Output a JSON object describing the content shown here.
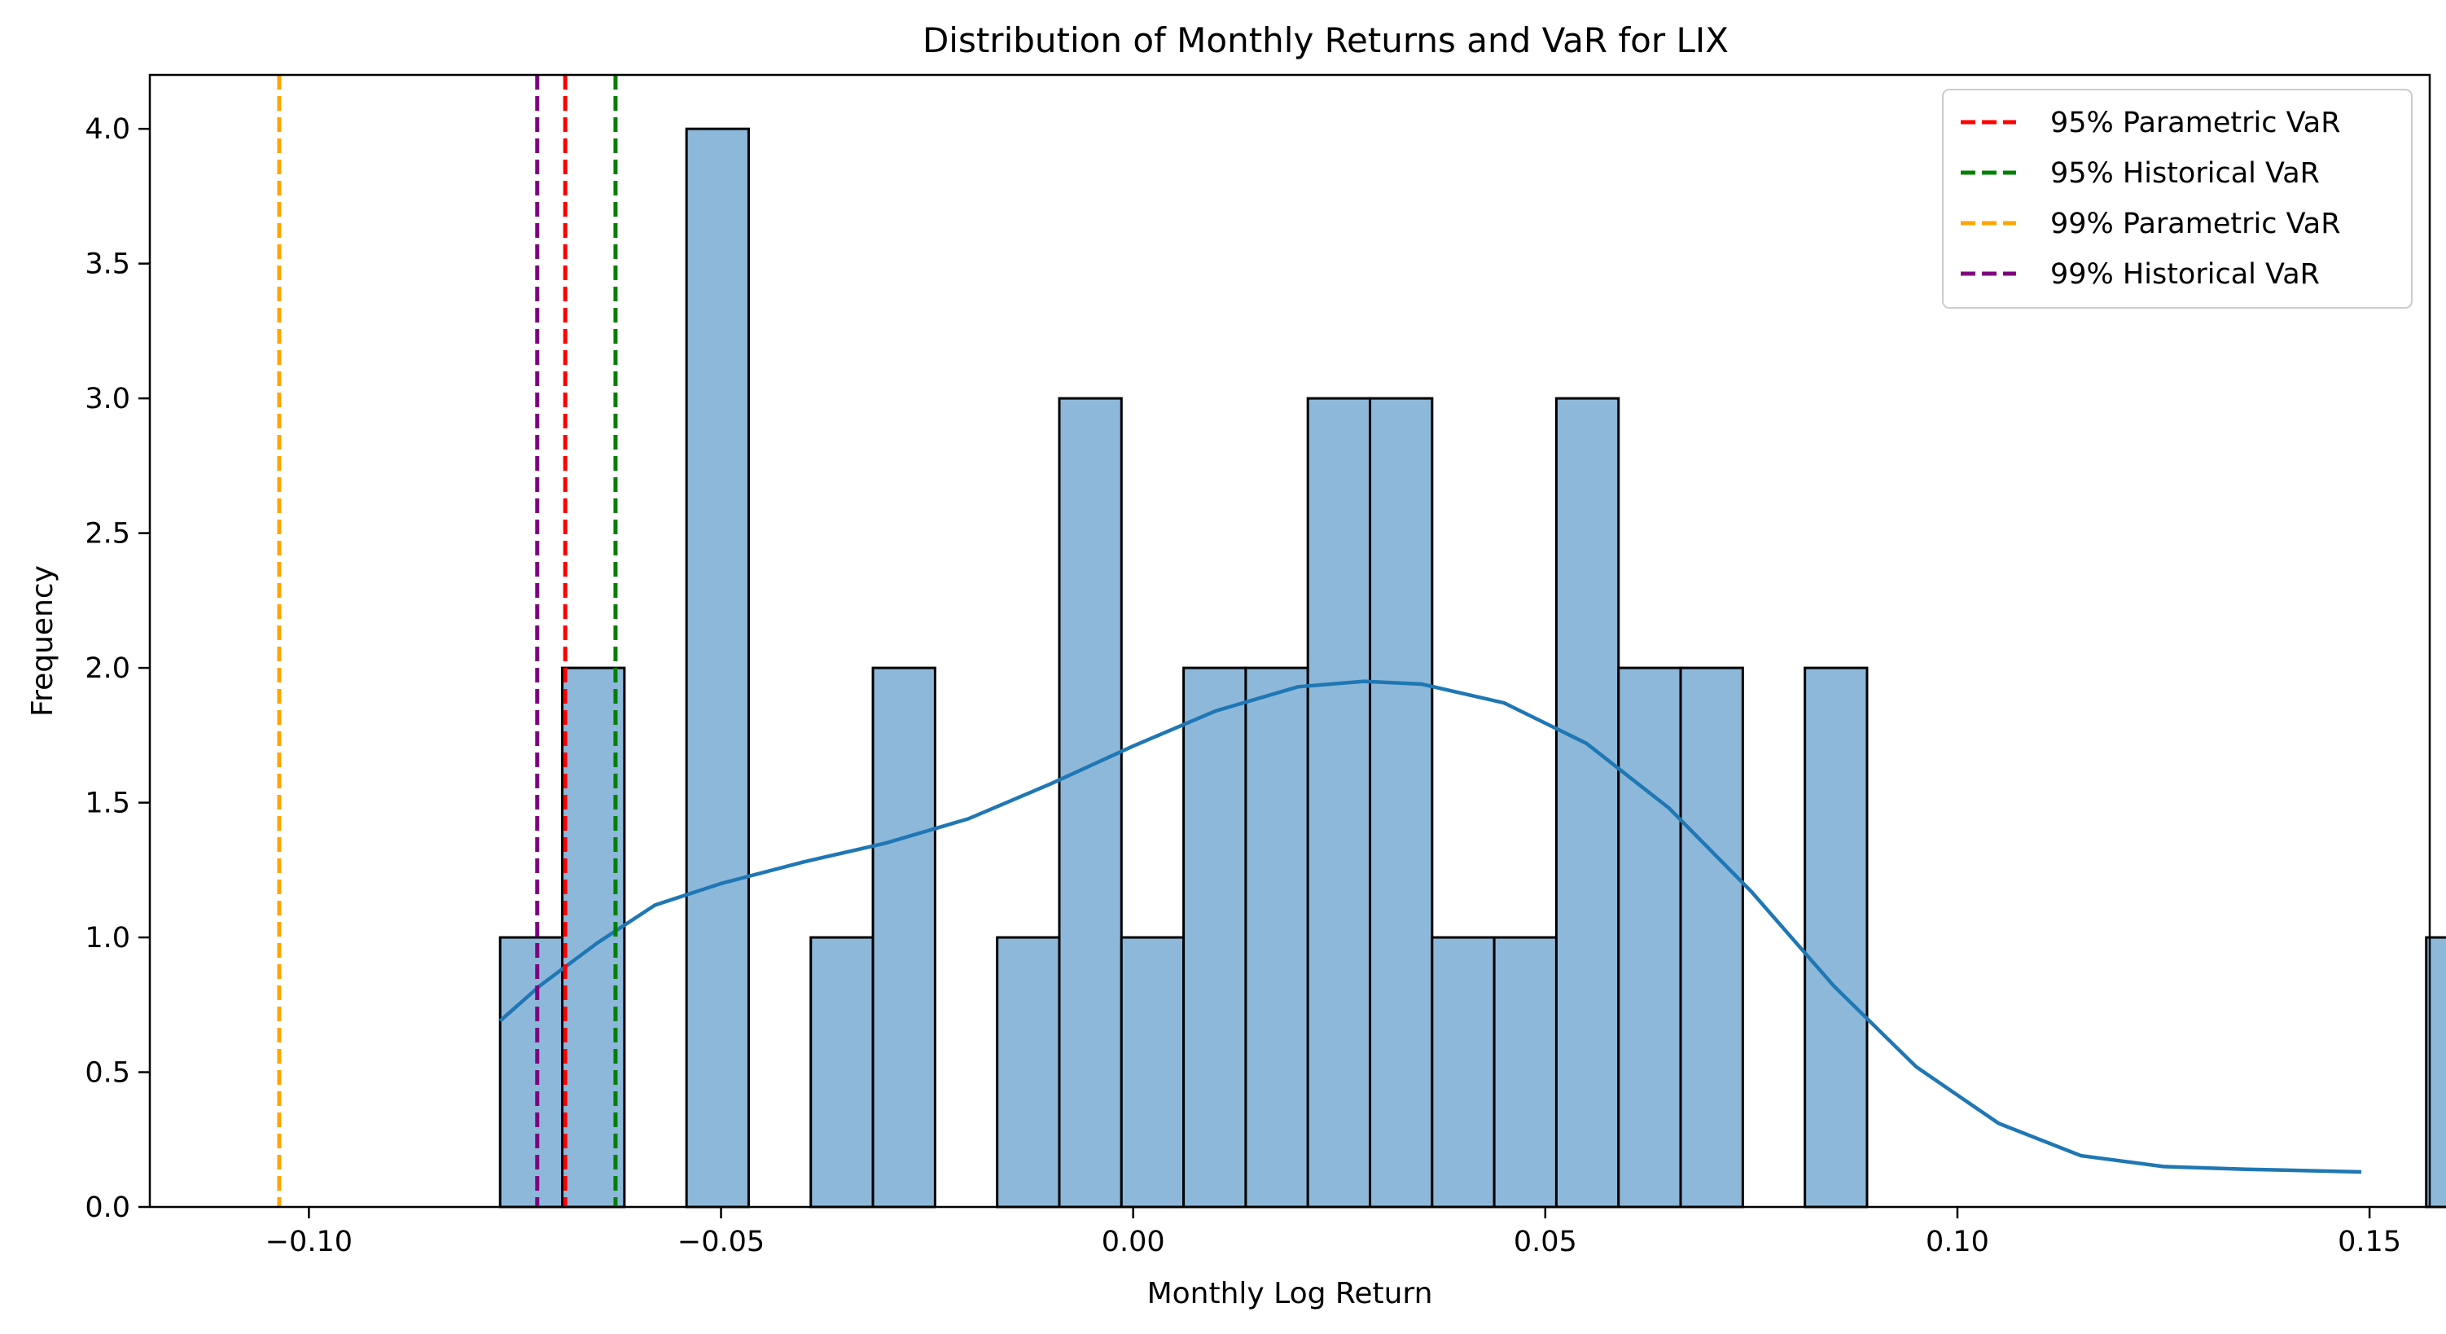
{
  "chart_data": {
    "type": "bar",
    "title": "Distribution of Monthly Returns and VaR for LIX",
    "xlabel": "Monthly Log Return",
    "ylabel": "Frequency",
    "xlim": [
      -0.1193,
      0.1573
    ],
    "ylim": [
      0,
      4.2
    ],
    "grid": false,
    "legend_position": "top-right",
    "xticks": [
      {
        "value": -0.1,
        "label": "−0.10"
      },
      {
        "value": -0.05,
        "label": "−0.05"
      },
      {
        "value": 0.0,
        "label": "0.00"
      },
      {
        "value": 0.05,
        "label": "0.05"
      },
      {
        "value": 0.1,
        "label": "0.10"
      },
      {
        "value": 0.15,
        "label": "0.15"
      }
    ],
    "yticks": [
      {
        "value": 0.0,
        "label": "0.0"
      },
      {
        "value": 0.5,
        "label": "0.5"
      },
      {
        "value": 1.0,
        "label": "1.0"
      },
      {
        "value": 1.5,
        "label": "1.5"
      },
      {
        "value": 2.0,
        "label": "2.0"
      },
      {
        "value": 2.5,
        "label": "2.5"
      },
      {
        "value": 3.0,
        "label": "3.0"
      },
      {
        "value": 3.5,
        "label": "3.5"
      },
      {
        "value": 4.0,
        "label": "4.0"
      }
    ],
    "histogram": {
      "bin_start": -0.0768,
      "bin_width": 0.007538,
      "counts": [
        1,
        2,
        0,
        4,
        0,
        1,
        2,
        0,
        1,
        3,
        1,
        2,
        2,
        3,
        3,
        1,
        1,
        3,
        2,
        2,
        0,
        2,
        0,
        0,
        0,
        0,
        0,
        0,
        0,
        0,
        0,
        1
      ],
      "fill_color": "#8db8da",
      "edge_color": "#000000"
    },
    "kde": {
      "color": "#1f77b4",
      "x": [
        -0.0768,
        -0.072,
        -0.065,
        -0.058,
        -0.05,
        -0.04,
        -0.03,
        -0.02,
        -0.01,
        0.0,
        0.01,
        0.02,
        0.028,
        0.035,
        0.045,
        0.055,
        0.065,
        0.075,
        0.085,
        0.095,
        0.105,
        0.115,
        0.125,
        0.135,
        0.149
      ],
      "y": [
        0.69,
        0.82,
        0.98,
        1.12,
        1.2,
        1.28,
        1.35,
        1.44,
        1.57,
        1.71,
        1.84,
        1.93,
        1.95,
        1.94,
        1.87,
        1.72,
        1.48,
        1.17,
        0.82,
        0.52,
        0.31,
        0.19,
        0.15,
        0.14,
        0.13
      ]
    },
    "var_lines": [
      {
        "name": "95% Parametric VaR",
        "value": -0.0689,
        "color": "#ff0000"
      },
      {
        "name": "95% Historical VaR",
        "value": -0.0628,
        "color": "#008000"
      },
      {
        "name": "99% Parametric VaR",
        "value": -0.1036,
        "color": "#ffa500"
      },
      {
        "name": "99% Historical VaR",
        "value": -0.0723,
        "color": "#800080"
      }
    ]
  }
}
